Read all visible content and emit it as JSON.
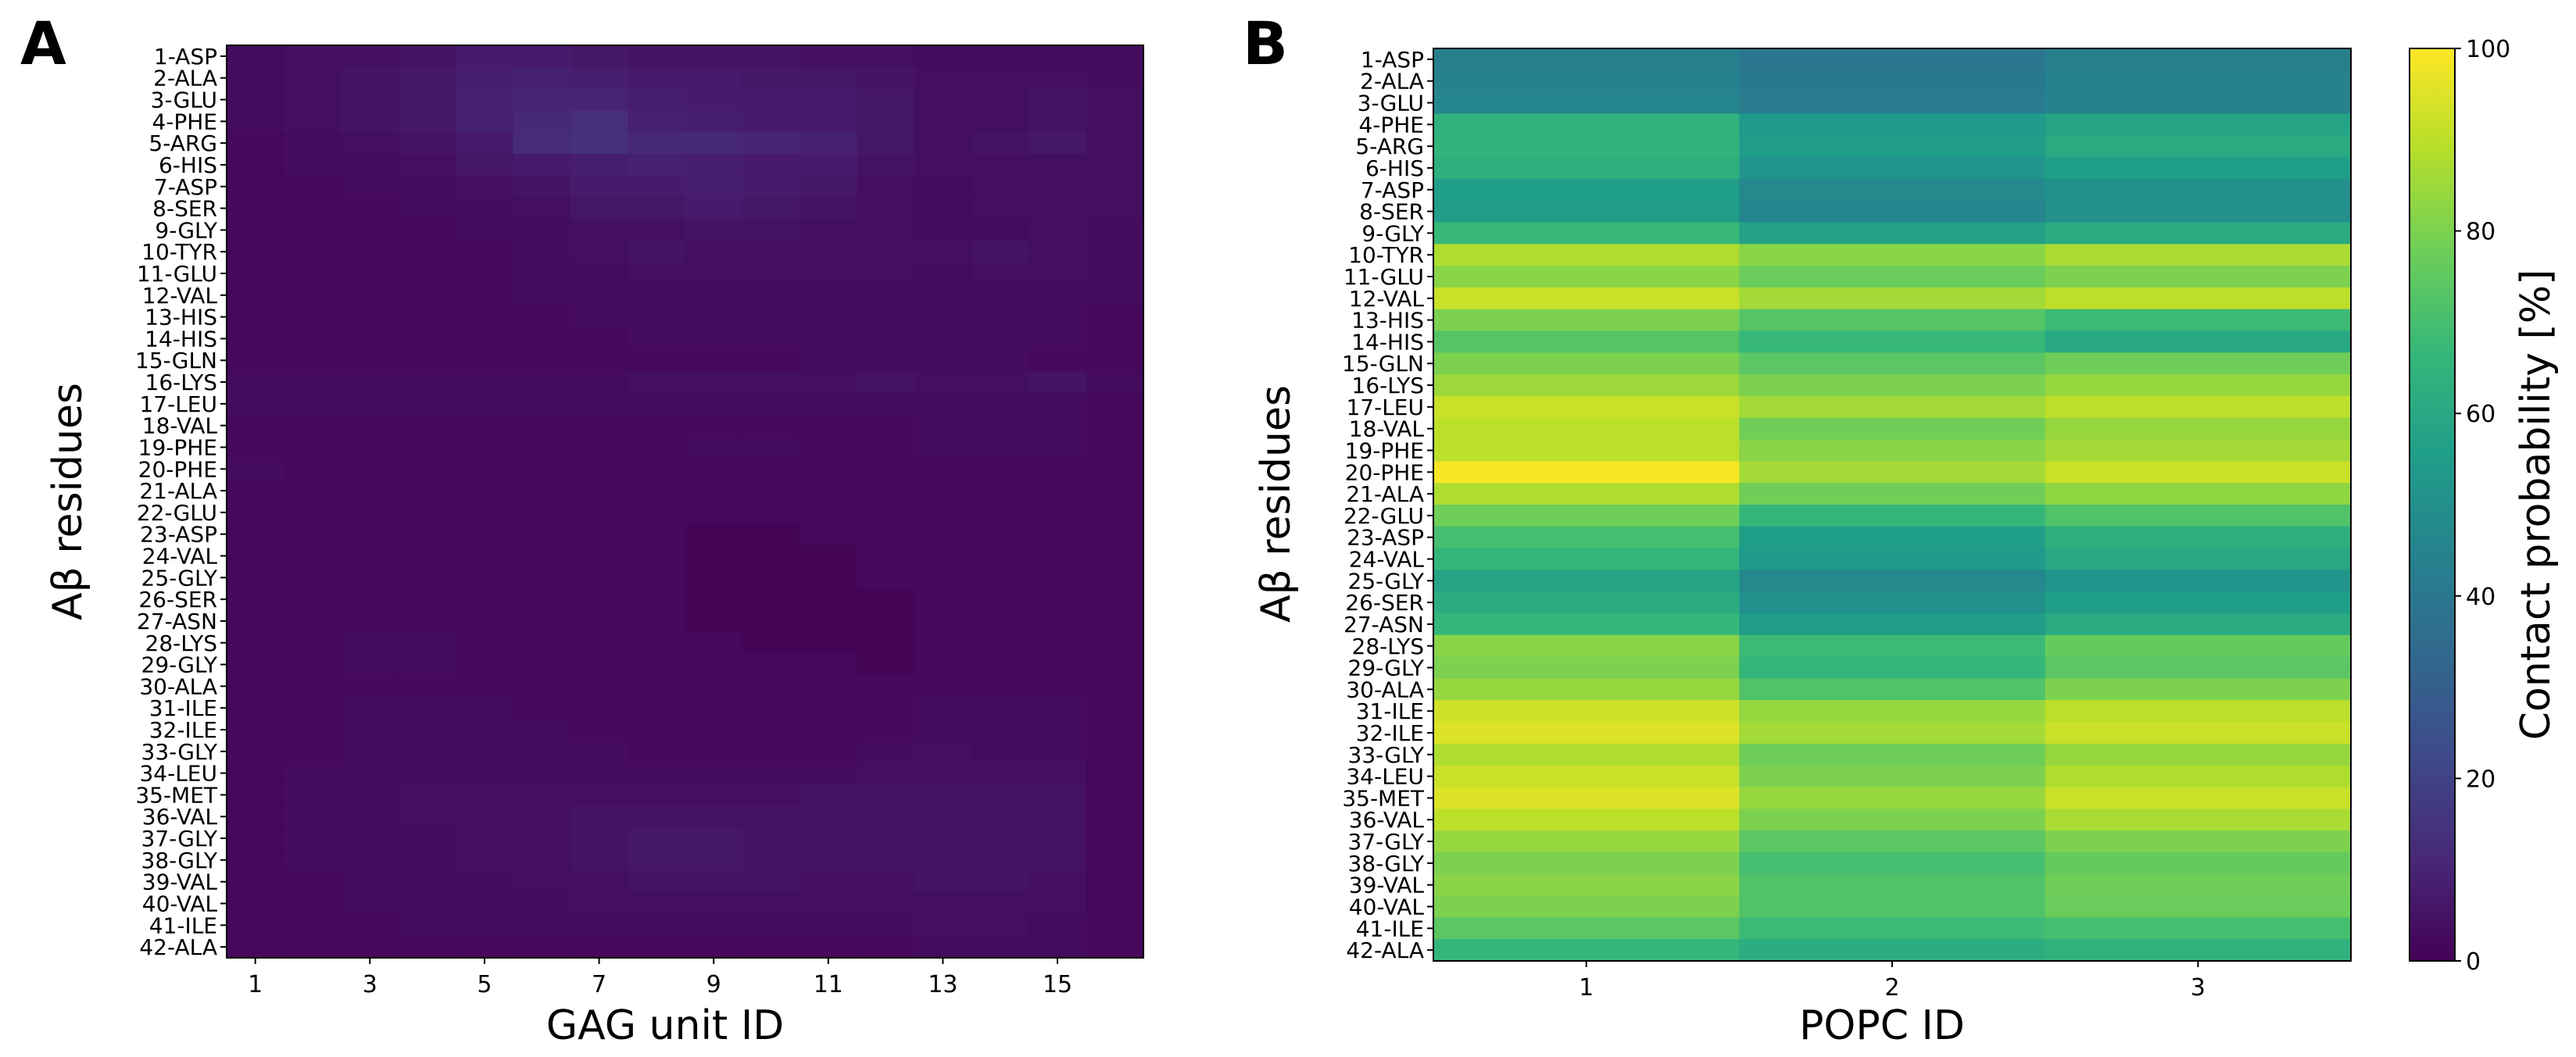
{
  "chart_data": [
    {
      "type": "heatmap",
      "panel_label": "A",
      "xlabel": "GAG unit ID",
      "ylabel": "Aβ residues",
      "x": [
        1,
        2,
        3,
        4,
        5,
        6,
        7,
        8,
        9,
        10,
        11,
        12,
        13,
        14,
        15,
        16
      ],
      "x_tick_labels": [
        "1",
        "3",
        "5",
        "7",
        "9",
        "11",
        "13",
        "15"
      ],
      "y_categories": [
        "1-ASP",
        "2-ALA",
        "3-GLU",
        "4-PHE",
        "5-ARG",
        "6-HIS",
        "7-ASP",
        "8-SER",
        "9-GLY",
        "10-TYR",
        "11-GLU",
        "12-VAL",
        "13-HIS",
        "14-HIS",
        "15-GLN",
        "16-LYS",
        "17-LEU",
        "18-VAL",
        "19-PHE",
        "20-PHE",
        "21-ALA",
        "22-GLU",
        "23-ASP",
        "24-VAL",
        "25-GLY",
        "26-SER",
        "27-ASN",
        "28-LYS",
        "29-GLY",
        "30-ALA",
        "31-ILE",
        "32-ILE",
        "33-GLY",
        "34-LEU",
        "35-MET",
        "36-VAL",
        "37-GLY",
        "38-GLY",
        "39-VAL",
        "40-VAL",
        "41-ILE",
        "42-ALA"
      ],
      "values": [
        [
          3,
          4,
          4,
          5,
          7,
          7,
          6,
          5,
          5,
          5,
          4,
          4,
          3,
          3,
          3,
          3
        ],
        [
          3,
          4,
          5,
          6,
          8,
          9,
          8,
          7,
          7,
          6,
          6,
          5,
          4,
          4,
          4,
          3
        ],
        [
          3,
          4,
          5,
          6,
          9,
          10,
          10,
          8,
          7,
          7,
          7,
          6,
          4,
          4,
          5,
          4
        ],
        [
          3,
          4,
          5,
          6,
          9,
          11,
          13,
          9,
          8,
          7,
          7,
          6,
          4,
          4,
          5,
          4
        ],
        [
          2,
          3,
          4,
          5,
          7,
          12,
          14,
          11,
          11,
          10,
          9,
          6,
          4,
          5,
          6,
          4
        ],
        [
          2,
          3,
          3,
          4,
          6,
          7,
          8,
          9,
          8,
          7,
          7,
          5,
          4,
          4,
          4,
          4
        ],
        [
          2,
          2,
          3,
          3,
          4,
          5,
          7,
          7,
          8,
          7,
          6,
          4,
          3,
          4,
          4,
          4
        ],
        [
          2,
          2,
          2,
          3,
          3,
          4,
          6,
          6,
          7,
          6,
          5,
          4,
          3,
          4,
          4,
          4
        ],
        [
          2,
          2,
          2,
          2,
          3,
          3,
          4,
          4,
          5,
          5,
          4,
          4,
          3,
          3,
          4,
          3
        ],
        [
          2,
          2,
          2,
          2,
          2,
          3,
          4,
          5,
          4,
          4,
          4,
          4,
          4,
          5,
          4,
          3
        ],
        [
          2,
          2,
          2,
          2,
          2,
          3,
          3,
          4,
          4,
          4,
          4,
          4,
          3,
          4,
          4,
          3
        ],
        [
          2,
          2,
          2,
          2,
          2,
          3,
          3,
          3,
          3,
          3,
          3,
          3,
          3,
          3,
          3,
          3
        ],
        [
          2,
          2,
          2,
          2,
          2,
          2,
          3,
          3,
          3,
          3,
          3,
          3,
          3,
          3,
          3,
          2
        ],
        [
          2,
          2,
          2,
          2,
          2,
          2,
          2,
          3,
          3,
          3,
          3,
          3,
          3,
          3,
          3,
          2
        ],
        [
          2,
          2,
          2,
          2,
          2,
          2,
          2,
          2,
          2,
          2,
          3,
          3,
          3,
          3,
          2,
          2
        ],
        [
          3,
          3,
          3,
          3,
          3,
          3,
          3,
          4,
          4,
          4,
          4,
          5,
          4,
          4,
          5,
          3
        ],
        [
          3,
          3,
          3,
          3,
          3,
          3,
          3,
          3,
          3,
          3,
          3,
          3,
          3,
          3,
          3,
          2
        ],
        [
          2,
          2,
          2,
          2,
          2,
          2,
          2,
          2,
          2,
          2,
          2,
          2,
          3,
          3,
          3,
          2
        ],
        [
          2,
          2,
          2,
          2,
          2,
          2,
          2,
          2,
          3,
          3,
          2,
          2,
          3,
          3,
          3,
          2
        ],
        [
          3,
          2,
          2,
          2,
          2,
          2,
          2,
          2,
          2,
          2,
          2,
          2,
          2,
          2,
          2,
          2
        ],
        [
          2,
          2,
          2,
          2,
          2,
          2,
          2,
          2,
          2,
          2,
          2,
          2,
          2,
          2,
          2,
          2
        ],
        [
          2,
          2,
          2,
          2,
          2,
          2,
          2,
          2,
          2,
          2,
          2,
          2,
          2,
          2,
          2,
          2
        ],
        [
          2,
          2,
          2,
          2,
          2,
          2,
          2,
          2,
          1,
          1,
          2,
          2,
          2,
          2,
          2,
          2
        ],
        [
          2,
          2,
          2,
          2,
          2,
          2,
          2,
          2,
          1,
          1,
          1,
          2,
          2,
          2,
          2,
          2
        ],
        [
          2,
          2,
          2,
          2,
          2,
          2,
          2,
          2,
          1,
          1,
          1,
          2,
          2,
          2,
          2,
          2
        ],
        [
          2,
          2,
          2,
          2,
          2,
          2,
          2,
          2,
          1,
          1,
          1,
          1,
          2,
          2,
          2,
          2
        ],
        [
          2,
          2,
          2,
          2,
          2,
          2,
          2,
          2,
          1,
          1,
          1,
          1,
          2,
          2,
          2,
          2
        ],
        [
          2,
          2,
          3,
          3,
          2,
          2,
          2,
          2,
          2,
          1,
          1,
          1,
          2,
          2,
          2,
          2
        ],
        [
          2,
          2,
          3,
          3,
          2,
          2,
          2,
          2,
          2,
          2,
          2,
          1,
          2,
          2,
          2,
          2
        ],
        [
          2,
          2,
          2,
          2,
          2,
          2,
          2,
          2,
          2,
          2,
          2,
          2,
          2,
          2,
          2,
          2
        ],
        [
          2,
          2,
          3,
          3,
          3,
          2,
          2,
          2,
          2,
          2,
          2,
          2,
          3,
          3,
          3,
          2
        ],
        [
          2,
          2,
          3,
          3,
          3,
          3,
          2,
          2,
          2,
          2,
          2,
          2,
          3,
          3,
          3,
          2
        ],
        [
          2,
          2,
          3,
          3,
          3,
          3,
          3,
          2,
          2,
          2,
          2,
          3,
          4,
          3,
          3,
          2
        ],
        [
          2,
          3,
          3,
          3,
          3,
          3,
          3,
          3,
          3,
          3,
          3,
          4,
          4,
          4,
          4,
          2
        ],
        [
          2,
          3,
          3,
          4,
          4,
          4,
          4,
          4,
          4,
          4,
          5,
          5,
          5,
          5,
          5,
          2
        ],
        [
          2,
          3,
          3,
          4,
          4,
          4,
          5,
          5,
          5,
          5,
          5,
          5,
          5,
          5,
          5,
          2
        ],
        [
          2,
          3,
          3,
          3,
          4,
          4,
          5,
          6,
          6,
          5,
          5,
          5,
          5,
          5,
          5,
          2
        ],
        [
          2,
          3,
          3,
          3,
          4,
          4,
          5,
          6,
          6,
          5,
          5,
          5,
          5,
          5,
          5,
          2
        ],
        [
          2,
          2,
          3,
          3,
          3,
          4,
          4,
          5,
          5,
          5,
          4,
          4,
          5,
          5,
          4,
          2
        ],
        [
          2,
          2,
          3,
          3,
          3,
          3,
          4,
          4,
          4,
          4,
          4,
          4,
          4,
          4,
          4,
          2
        ],
        [
          2,
          2,
          2,
          3,
          3,
          3,
          3,
          3,
          3,
          3,
          3,
          3,
          4,
          4,
          3,
          2
        ],
        [
          2,
          2,
          2,
          2,
          2,
          2,
          2,
          2,
          2,
          2,
          2,
          2,
          3,
          3,
          3,
          2
        ]
      ]
    },
    {
      "type": "heatmap",
      "panel_label": "B",
      "xlabel": "POPC ID",
      "ylabel": "Aβ residues",
      "x": [
        1,
        2,
        3
      ],
      "x_tick_labels": [
        "1",
        "2",
        "3"
      ],
      "y_categories": [
        "1-ASP",
        "2-ALA",
        "3-GLU",
        "4-PHE",
        "5-ARG",
        "6-HIS",
        "7-ASP",
        "8-SER",
        "9-GLY",
        "10-TYR",
        "11-GLU",
        "12-VAL",
        "13-HIS",
        "14-HIS",
        "15-GLN",
        "16-LYS",
        "17-LEU",
        "18-VAL",
        "19-PHE",
        "20-PHE",
        "21-ALA",
        "22-GLU",
        "23-ASP",
        "24-VAL",
        "25-GLY",
        "26-SER",
        "27-ASN",
        "28-LYS",
        "29-GLY",
        "30-ALA",
        "31-ILE",
        "32-ILE",
        "33-GLY",
        "34-LEU",
        "35-MET",
        "36-VAL",
        "37-GLY",
        "38-GLY",
        "39-VAL",
        "40-VAL",
        "41-ILE",
        "42-ALA"
      ],
      "values": [
        [
          43,
          39,
          43
        ],
        [
          45,
          40,
          45
        ],
        [
          46,
          42,
          45
        ],
        [
          64,
          54,
          58
        ],
        [
          65,
          55,
          61
        ],
        [
          63,
          52,
          56
        ],
        [
          56,
          47,
          50
        ],
        [
          55,
          46,
          50
        ],
        [
          67,
          57,
          61
        ],
        [
          88,
          82,
          87
        ],
        [
          82,
          77,
          80
        ],
        [
          92,
          86,
          90
        ],
        [
          80,
          73,
          68
        ],
        [
          73,
          67,
          60
        ],
        [
          80,
          74,
          78
        ],
        [
          85,
          80,
          84
        ],
        [
          92,
          86,
          90
        ],
        [
          90,
          78,
          84
        ],
        [
          90,
          82,
          86
        ],
        [
          99,
          86,
          92
        ],
        [
          88,
          78,
          83
        ],
        [
          78,
          66,
          72
        ],
        [
          70,
          56,
          63
        ],
        [
          66,
          54,
          60
        ],
        [
          58,
          47,
          52
        ],
        [
          62,
          50,
          56
        ],
        [
          66,
          55,
          61
        ],
        [
          82,
          68,
          76
        ],
        [
          80,
          66,
          74
        ],
        [
          84,
          72,
          80
        ],
        [
          93,
          84,
          90
        ],
        [
          95,
          86,
          92
        ],
        [
          88,
          78,
          84
        ],
        [
          92,
          80,
          88
        ],
        [
          95,
          84,
          92
        ],
        [
          90,
          80,
          87
        ],
        [
          84,
          74,
          80
        ],
        [
          80,
          70,
          76
        ],
        [
          82,
          72,
          78
        ],
        [
          80,
          72,
          77
        ],
        [
          74,
          68,
          70
        ],
        [
          66,
          62,
          64
        ]
      ]
    }
  ],
  "colorbar": {
    "label": "Contact probability [%]",
    "range": [
      0,
      100
    ],
    "ticks": [
      "0",
      "20",
      "40",
      "60",
      "80",
      "100"
    ]
  },
  "colormap_stops": [
    "#440154",
    "#482878",
    "#3e4989",
    "#31688e",
    "#26828e",
    "#1f9e89",
    "#35b779",
    "#6ece58",
    "#b5de2b",
    "#fde725"
  ]
}
